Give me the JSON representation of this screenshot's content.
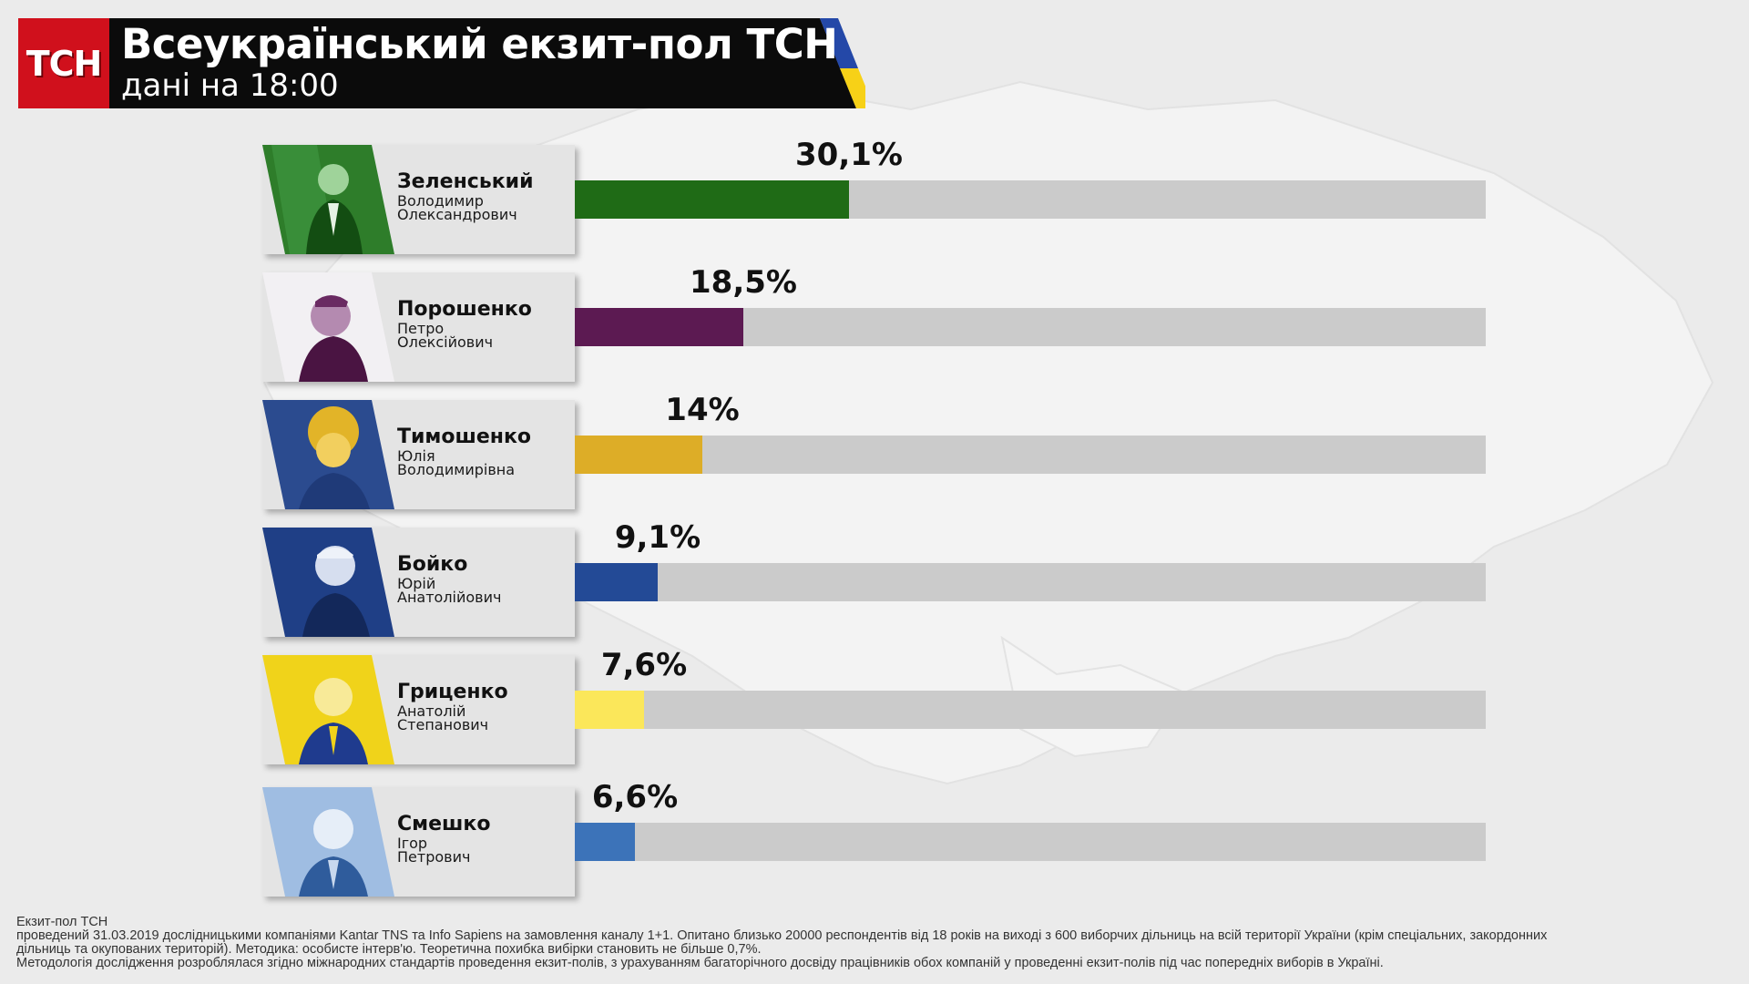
{
  "header": {
    "logo": "ТСН",
    "title": "Всеукраїнський екзит-пол ТСН",
    "subtitle": "дані на 18:00"
  },
  "colors": {
    "zelensky": "#1f6b16",
    "poroshenko": "#5c1a52",
    "tymoshenko": "#ddad27",
    "boyko": "#234a96",
    "hrytsenko": "#fbe75a",
    "smeshko": "#3c73b9",
    "track": "#cbcbcb",
    "flag_blue": "#2448a8",
    "flag_yellow": "#f7d117"
  },
  "chart_data": {
    "type": "bar",
    "orientation": "horizontal",
    "xlim": [
      0,
      100
    ],
    "categories": [
      "Зеленський",
      "Порошенко",
      "Тимошенко",
      "Бойко",
      "Гриценко",
      "Смешко"
    ],
    "values": [
      30.1,
      18.5,
      14,
      9.1,
      7.6,
      6.6
    ],
    "candidates": [
      {
        "last": "Зеленський",
        "first": "Володимир",
        "patronymic": "Олександрович",
        "value": 30.1,
        "label": "30,1%",
        "color": "#1f6b16",
        "photo_tint": "green"
      },
      {
        "last": "Порошенко",
        "first": "Петро",
        "patronymic": "Олексійович",
        "value": 18.5,
        "label": "18,5%",
        "color": "#5c1a52",
        "photo_tint": "purple"
      },
      {
        "last": "Тимошенко",
        "first": "Юлія",
        "patronymic": "Володимирівна",
        "value": 14,
        "label": "14%",
        "color": "#ddad27",
        "photo_tint": "blue-yellow"
      },
      {
        "last": "Бойко",
        "first": "Юрій",
        "patronymic": "Анатолійович",
        "value": 9.1,
        "label": "9,1%",
        "color": "#234a96",
        "photo_tint": "blue"
      },
      {
        "last": "Гриценко",
        "first": "Анатолій",
        "patronymic": "Степанович",
        "value": 7.6,
        "label": "7,6%",
        "color": "#fbe75a",
        "photo_tint": "yellow-blue"
      },
      {
        "last": "Смешко",
        "first": "Ігор",
        "patronymic": "Петрович",
        "value": 6.6,
        "label": "6,6%",
        "color": "#3c73b9",
        "photo_tint": "light-blue"
      }
    ]
  },
  "footer": {
    "line1": "Екзит-пол ТСН",
    "line2": "проведений 31.03.2019 дослідницькими компаніями Kantar TNS та Info Sapiens на замовлення каналу 1+1. Опитано близько 20000 респондентів від 18 років на виході з 600 виборчих дільниць на всій території України (крім спеціальних, закордонних",
    "line3": "дільниць та окупованих територій). Методика: особисте інтерв'ю. Теоретична похибка вибірки становить не більше 0,7%.",
    "line4": "Методологія дослідження розроблялася згідно міжнародних стандартів проведення екзит-полів, з урахуванням багаторічного досвіду працівників обох компаній у проведенні екзит-полів під час попередніх виборів в Україні."
  }
}
